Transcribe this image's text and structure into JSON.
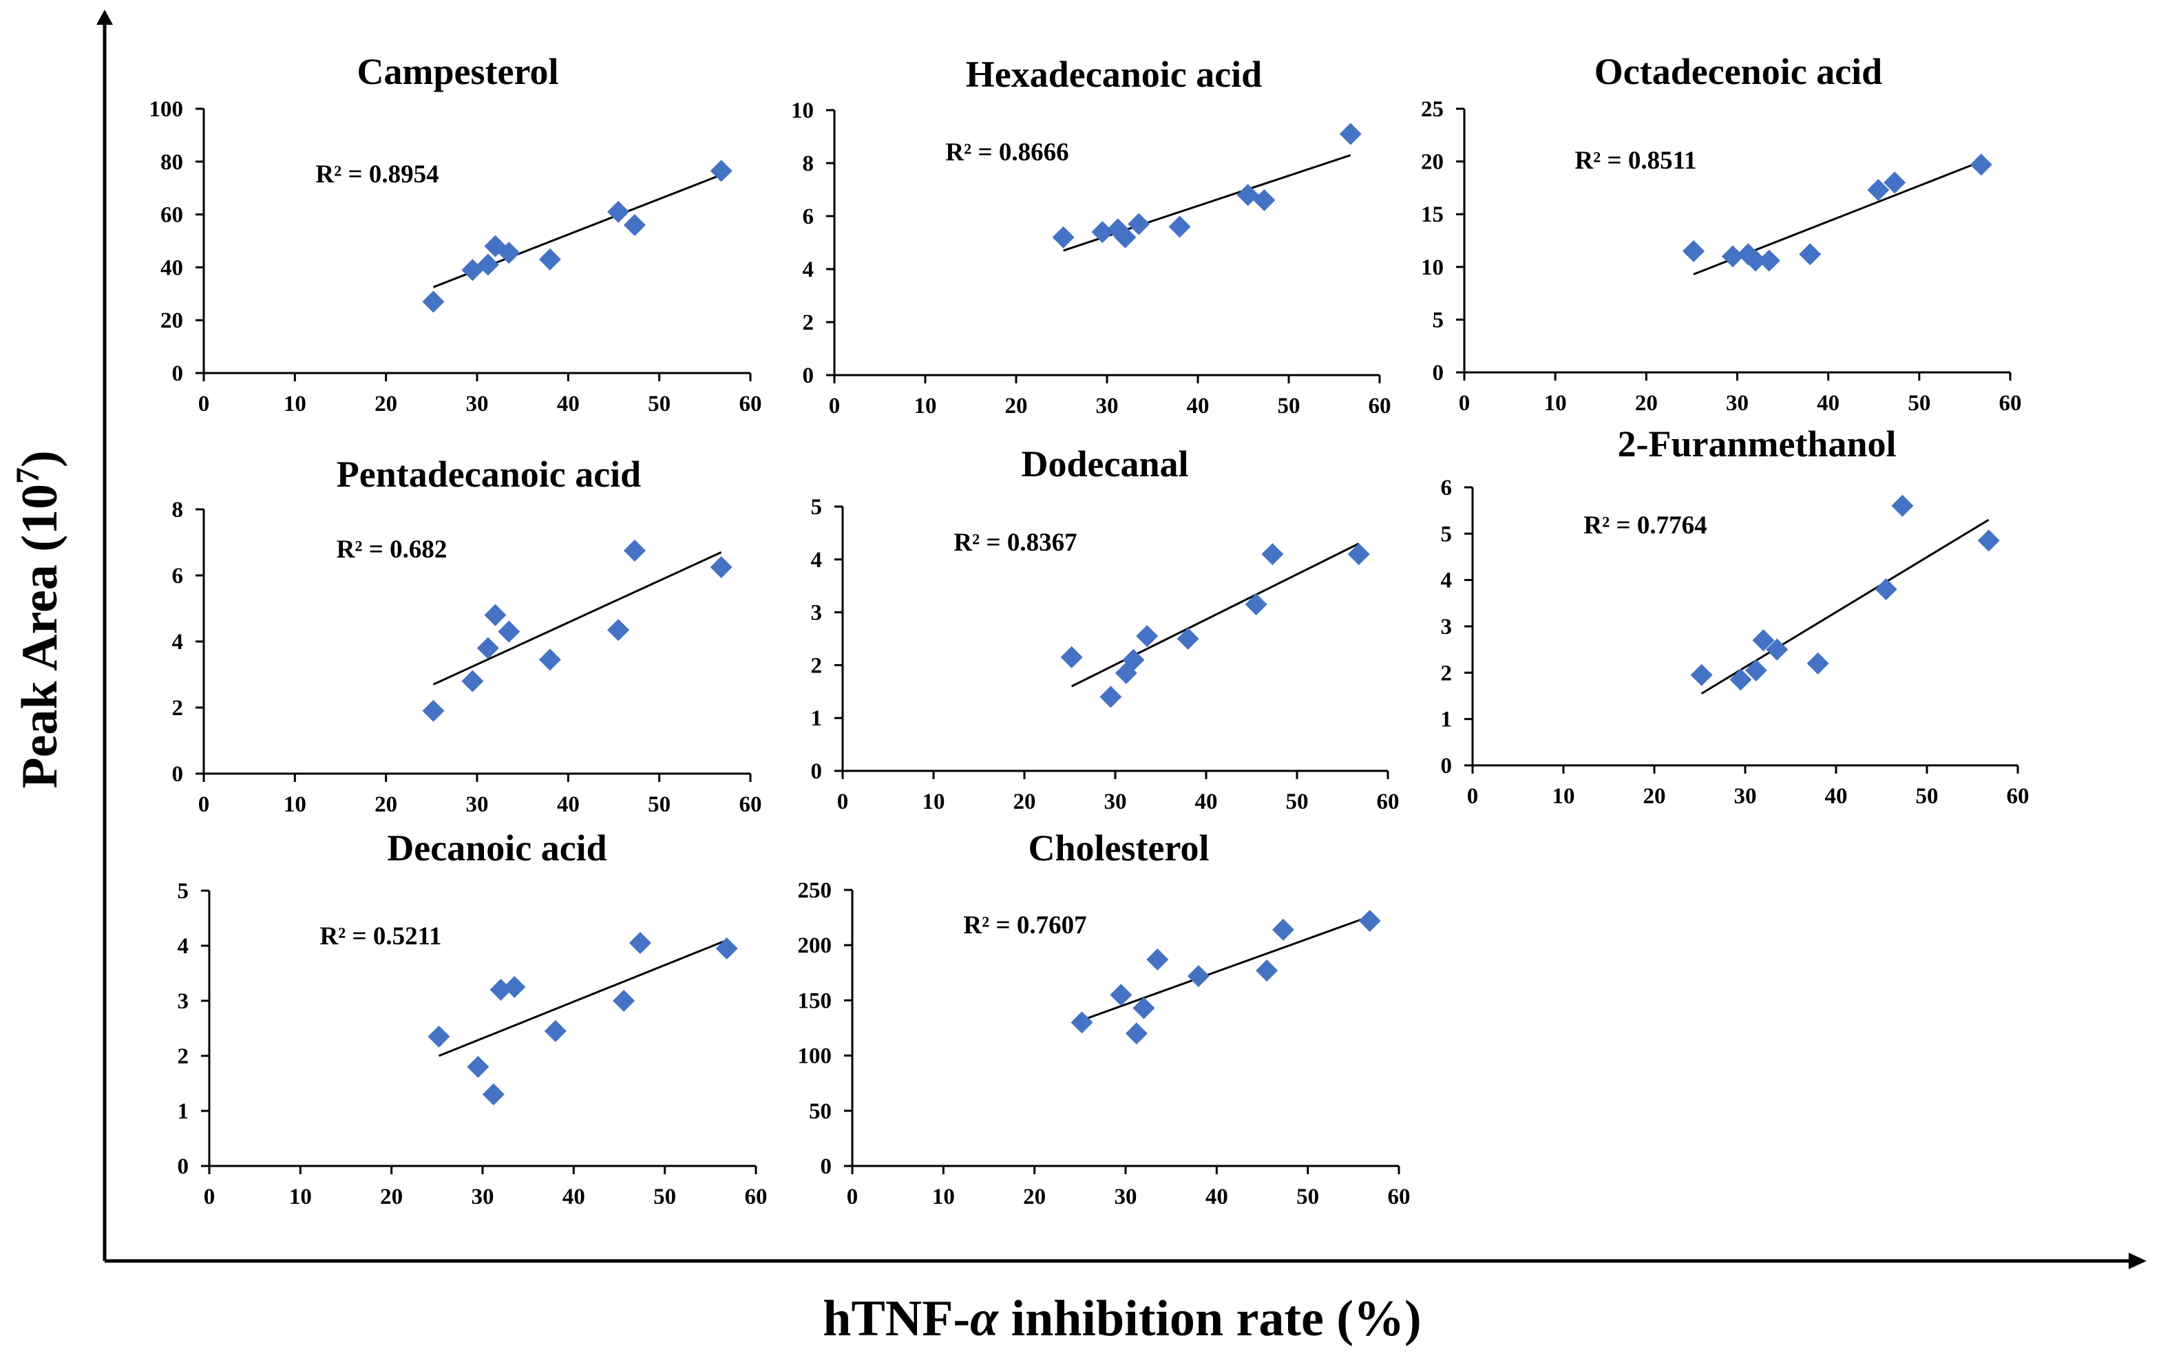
{
  "figure": {
    "ylabel_main": "Peak Area (10",
    "ylabel_exp": "7",
    "ylabel_close": ")",
    "xlabel_pre": "hTNF-",
    "xlabel_greek": "α",
    "xlabel_post": " inhibition rate (%)"
  },
  "colors": {
    "marker": "#4472C4",
    "trend": "#000000",
    "axis": "#000000"
  },
  "chart_data": [
    {
      "type": "scatter",
      "title": "Campesterol",
      "r2": "R² = 0.8954",
      "xlim": [
        0,
        60
      ],
      "ylim": [
        0,
        100
      ],
      "xticks": [
        "0",
        "10",
        "20",
        "30",
        "40",
        "50",
        "60"
      ],
      "yticks": [
        "0",
        "20",
        "40",
        "60",
        "80",
        "100"
      ],
      "x": [
        25.2,
        29.5,
        31.2,
        32.0,
        33.5,
        38.0,
        45.5,
        47.3,
        56.8
      ],
      "y": [
        27,
        39,
        41,
        48,
        45.5,
        43,
        61,
        56,
        76.5
      ],
      "trend": [
        [
          25.2,
          32.5
        ],
        [
          56.8,
          75
        ]
      ]
    },
    {
      "type": "scatter",
      "title": "Hexadecanoic acid",
      "r2": "R² = 0.8666",
      "xlim": [
        0,
        60
      ],
      "ylim": [
        0,
        10
      ],
      "xticks": [
        "0",
        "10",
        "20",
        "30",
        "40",
        "50",
        "60"
      ],
      "yticks": [
        "0",
        "2",
        "4",
        "6",
        "8",
        "10"
      ],
      "x": [
        25.2,
        29.5,
        31.2,
        32.0,
        33.5,
        38.0,
        45.5,
        47.3,
        56.8
      ],
      "y": [
        5.2,
        5.4,
        5.5,
        5.2,
        5.7,
        5.6,
        6.8,
        6.6,
        9.1
      ],
      "trend": [
        [
          25.2,
          4.7
        ],
        [
          56.8,
          8.3
        ]
      ]
    },
    {
      "type": "scatter",
      "title": "Octadecenoic acid",
      "r2": "R² = 0.8511",
      "xlim": [
        0,
        60
      ],
      "ylim": [
        0,
        25
      ],
      "xticks": [
        "0",
        "10",
        "20",
        "30",
        "40",
        "50",
        "60"
      ],
      "yticks": [
        "0",
        "5",
        "10",
        "15",
        "20",
        "25"
      ],
      "x": [
        25.2,
        29.5,
        31.2,
        32.0,
        33.5,
        38.0,
        45.5,
        47.3,
        56.8
      ],
      "y": [
        11.5,
        11,
        11.2,
        10.6,
        10.6,
        11.2,
        17.3,
        18,
        19.7
      ],
      "trend": [
        [
          25.2,
          9.3
        ],
        [
          56.8,
          20
        ]
      ]
    },
    {
      "type": "scatter",
      "title": "Pentadecanoic acid",
      "r2": "R² = 0.682",
      "xlim": [
        0,
        60
      ],
      "ylim": [
        0,
        8
      ],
      "xticks": [
        "0",
        "10",
        "20",
        "30",
        "40",
        "50",
        "60"
      ],
      "yticks": [
        "0",
        "2",
        "4",
        "6",
        "8"
      ],
      "x": [
        25.2,
        29.5,
        31.2,
        32.0,
        33.5,
        38.0,
        45.5,
        47.3,
        56.8
      ],
      "y": [
        1.9,
        2.8,
        3.8,
        4.8,
        4.3,
        3.45,
        4.35,
        6.75,
        6.25
      ],
      "trend": [
        [
          25.2,
          2.7
        ],
        [
          56.8,
          6.7
        ]
      ]
    },
    {
      "type": "scatter",
      "title": "Dodecanal",
      "r2": "R² = 0.8367",
      "xlim": [
        0,
        60
      ],
      "ylim": [
        0,
        5
      ],
      "xticks": [
        "0",
        "10",
        "20",
        "30",
        "40",
        "50",
        "60"
      ],
      "yticks": [
        "0",
        "1",
        "2",
        "3",
        "4",
        "5"
      ],
      "x": [
        25.2,
        29.5,
        31.2,
        32.0,
        33.5,
        38.0,
        45.5,
        47.3,
        56.8
      ],
      "y": [
        2.15,
        1.4,
        1.85,
        2.1,
        2.55,
        2.5,
        3.15,
        4.1,
        4.1
      ],
      "trend": [
        [
          25.2,
          1.6
        ],
        [
          56.8,
          4.3
        ]
      ]
    },
    {
      "type": "scatter",
      "title": "2-Furanmethanol",
      "r2": "R² = 0.7764",
      "xlim": [
        0,
        60
      ],
      "ylim": [
        0,
        6
      ],
      "xticks": [
        "0",
        "10",
        "20",
        "30",
        "40",
        "50",
        "60"
      ],
      "yticks": [
        "0",
        "1",
        "2",
        "3",
        "4",
        "5",
        "6"
      ],
      "x": [
        25.2,
        29.5,
        31.2,
        32.0,
        33.5,
        38.0,
        45.5,
        47.3,
        56.8
      ],
      "y": [
        1.95,
        1.85,
        2.05,
        2.7,
        2.5,
        2.2,
        3.8,
        5.6,
        4.85
      ],
      "trend": [
        [
          25.2,
          1.55
        ],
        [
          56.8,
          5.3
        ]
      ]
    },
    {
      "type": "scatter",
      "title": "Decanoic acid",
      "r2": "R² = 0.5211",
      "xlim": [
        0,
        60
      ],
      "ylim": [
        0,
        5
      ],
      "xticks": [
        "0",
        "10",
        "20",
        "30",
        "40",
        "50",
        "60"
      ],
      "yticks": [
        "0",
        "1",
        "2",
        "3",
        "4",
        "5"
      ],
      "x": [
        25.2,
        29.5,
        31.2,
        32.0,
        33.5,
        38.0,
        45.5,
        47.3,
        56.8
      ],
      "y": [
        2.35,
        1.8,
        1.3,
        3.2,
        3.25,
        2.45,
        3.0,
        4.05,
        3.95
      ],
      "trend": [
        [
          25.2,
          2.0
        ],
        [
          56.8,
          4.1
        ]
      ]
    },
    {
      "type": "scatter",
      "title": "Cholesterol",
      "r2": "R² = 0.7607",
      "xlim": [
        0,
        60
      ],
      "ylim": [
        0,
        250
      ],
      "xticks": [
        "0",
        "10",
        "20",
        "30",
        "40",
        "50",
        "60"
      ],
      "yticks": [
        "0",
        "50",
        "100",
        "150",
        "200",
        "250"
      ],
      "x": [
        25.2,
        29.5,
        31.2,
        32.0,
        33.5,
        38.0,
        45.5,
        47.3,
        56.8
      ],
      "y": [
        130,
        155,
        120,
        143,
        187,
        172,
        177,
        214,
        222
      ],
      "trend": [
        [
          25.2,
          132
        ],
        [
          56.8,
          226
        ]
      ]
    }
  ]
}
